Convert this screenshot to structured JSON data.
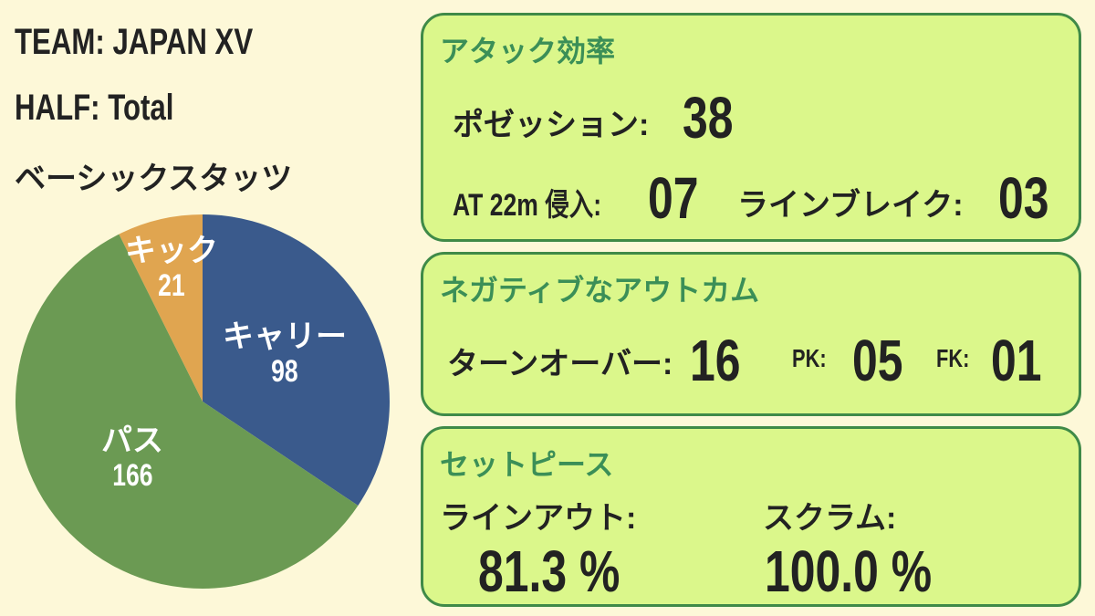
{
  "header": {
    "team": "TEAM: JAPAN XV",
    "half": "HALF: Total",
    "section": "ベーシックスタッツ"
  },
  "chart_data": {
    "type": "pie",
    "title": "ベーシックスタッツ",
    "categories": [
      "キャリー",
      "パス",
      "キック"
    ],
    "values": [
      98,
      166,
      21
    ],
    "colors": [
      "#3a5a8c",
      "#6b9a53",
      "#e0a550"
    ],
    "start_angle": "12 o'clock, clockwise",
    "labels_on_slices": true,
    "legend": "none"
  },
  "pie": {
    "slices": [
      {
        "label": "キャリー",
        "value": "98",
        "color": "#3a5a8c"
      },
      {
        "label": "パス",
        "value": "166",
        "color": "#6b9a53"
      },
      {
        "label": "キック",
        "value": "21",
        "color": "#e0a550"
      }
    ]
  },
  "panels": {
    "attack": {
      "title": "アタック効率",
      "possession_label": "ポゼッション:",
      "possession_value": "38",
      "entries_label": "AT 22m 侵入:",
      "entries_value": "07",
      "linebreak_label": "ラインブレイク:",
      "linebreak_value": "03"
    },
    "negative": {
      "title": "ネガティブなアウトカム",
      "turnover_label": "ターンオーバー:",
      "turnover_value": "16",
      "pk_label": "PK:",
      "pk_value": "05",
      "fk_label": "FK:",
      "fk_value": "01"
    },
    "setpiece": {
      "title": "セットピース",
      "lineout_label": "ラインアウト:",
      "lineout_value": "81.3 %",
      "scrum_label": "スクラム:",
      "scrum_value": "100.0 %"
    }
  },
  "colors": {
    "background": "#fdf8d8",
    "panel_fill": "#dbf78b",
    "panel_border": "#3f8a48",
    "panel_title": "#3b8f57",
    "text": "#222222"
  }
}
